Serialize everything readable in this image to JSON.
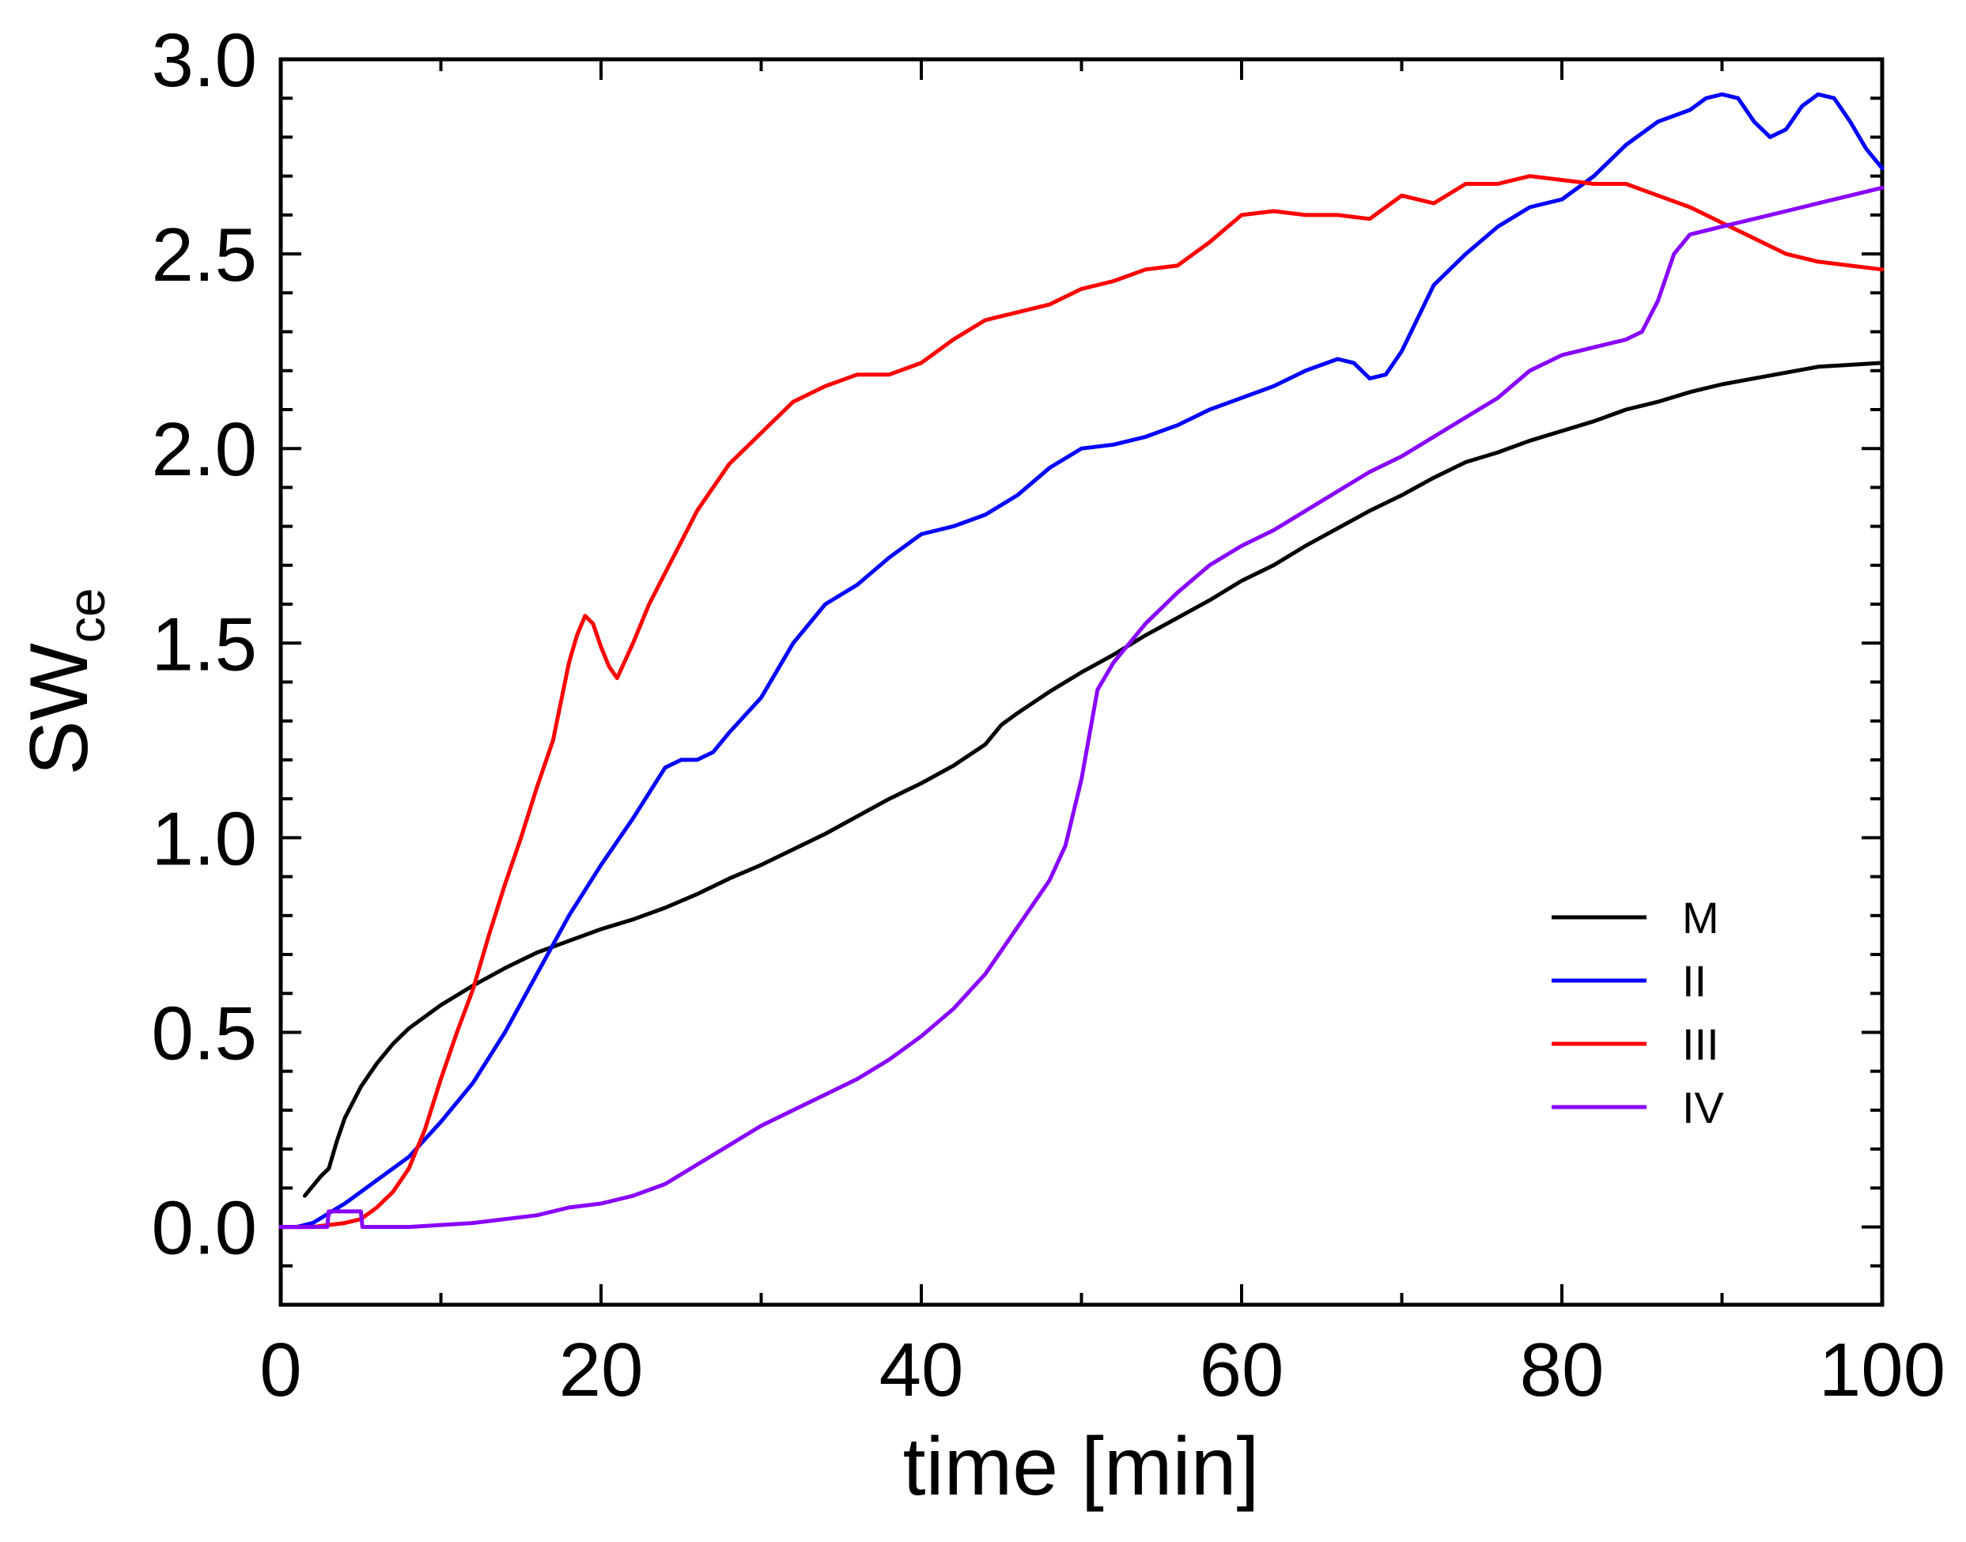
{
  "chart_data": {
    "type": "line",
    "title": "",
    "xlabel": "time [min]",
    "ylabel": "SW",
    "ylabel_subscript": "ce",
    "xlim": [
      0,
      100
    ],
    "ylim": [
      -0.2,
      3.0
    ],
    "xticks": [
      0,
      20,
      40,
      60,
      80,
      100
    ],
    "xtick_labels": [
      "0",
      "20",
      "40",
      "60",
      "80",
      "100"
    ],
    "yticks": [
      0.0,
      0.5,
      1.0,
      1.5,
      2.0,
      2.5,
      3.0
    ],
    "ytick_labels": [
      "0.0",
      "0.5",
      "1.0",
      "1.5",
      "2.0",
      "2.5",
      "3.0"
    ],
    "grid": false,
    "legend_position": "bottom-right",
    "series": [
      {
        "name": "M",
        "color": "#000000",
        "x": [
          1.5,
          2.5,
          3,
          3.5,
          4,
          5,
          6,
          7,
          8,
          10,
          12,
          14,
          16,
          18,
          20,
          22,
          24,
          26,
          28,
          30,
          32,
          34,
          36,
          38,
          40,
          42,
          44,
          45,
          46,
          48,
          50,
          52,
          54,
          56,
          58,
          60,
          62,
          64,
          66,
          68,
          70,
          72,
          74,
          76,
          78,
          80,
          82,
          84,
          86,
          88,
          90,
          92,
          94,
          96,
          98,
          100
        ],
        "y": [
          0.08,
          0.13,
          0.15,
          0.22,
          0.28,
          0.36,
          0.42,
          0.47,
          0.51,
          0.57,
          0.62,
          0.665,
          0.705,
          0.735,
          0.765,
          0.79,
          0.82,
          0.855,
          0.895,
          0.93,
          0.97,
          1.01,
          1.055,
          1.1,
          1.14,
          1.185,
          1.24,
          1.29,
          1.32,
          1.375,
          1.425,
          1.47,
          1.52,
          1.565,
          1.61,
          1.66,
          1.7,
          1.75,
          1.795,
          1.84,
          1.88,
          1.925,
          1.965,
          1.99,
          2.02,
          2.045,
          2.07,
          2.1,
          2.12,
          2.145,
          2.165,
          2.18,
          2.195,
          2.21,
          2.215,
          2.22
        ]
      },
      {
        "name": "II",
        "color": "#0000ff",
        "x": [
          0,
          1,
          2,
          4,
          6,
          8,
          10,
          12,
          14,
          16,
          18,
          20,
          22,
          24,
          25,
          26,
          27,
          28,
          30,
          32,
          34,
          36,
          38,
          40,
          42,
          44,
          46,
          48,
          50,
          52,
          54,
          56,
          58,
          60,
          62,
          64,
          66,
          67,
          68,
          69,
          70,
          72,
          74,
          76,
          78,
          80,
          82,
          84,
          86,
          88,
          89,
          90,
          91,
          92,
          93,
          94,
          95,
          96,
          97,
          98,
          99,
          100
        ],
        "y": [
          0.0,
          0.0,
          0.01,
          0.06,
          0.12,
          0.18,
          0.27,
          0.37,
          0.5,
          0.65,
          0.8,
          0.93,
          1.05,
          1.18,
          1.2,
          1.2,
          1.22,
          1.27,
          1.36,
          1.5,
          1.6,
          1.65,
          1.72,
          1.78,
          1.8,
          1.83,
          1.88,
          1.95,
          2.0,
          2.01,
          2.03,
          2.06,
          2.1,
          2.13,
          2.16,
          2.2,
          2.23,
          2.22,
          2.18,
          2.19,
          2.25,
          2.42,
          2.5,
          2.57,
          2.62,
          2.64,
          2.7,
          2.78,
          2.84,
          2.87,
          2.9,
          2.91,
          2.9,
          2.84,
          2.8,
          2.82,
          2.88,
          2.91,
          2.9,
          2.84,
          2.77,
          2.72
        ]
      },
      {
        "name": "III",
        "color": "#ff0000",
        "x": [
          0,
          2,
          4,
          5,
          6,
          7,
          8,
          9,
          10,
          11,
          12,
          13,
          14,
          15,
          16,
          17,
          17.5,
          18,
          18.5,
          19,
          19.5,
          20,
          20.5,
          21,
          22,
          23,
          24,
          25,
          26,
          28,
          30,
          32,
          34,
          36,
          38,
          40,
          42,
          44,
          46,
          48,
          50,
          52,
          54,
          56,
          58,
          60,
          62,
          64,
          66,
          68,
          70,
          72,
          74,
          76,
          78,
          80,
          82,
          84,
          86,
          88,
          90,
          92,
          94,
          96,
          98,
          100
        ],
        "y": [
          0.0,
          0.0,
          0.01,
          0.02,
          0.05,
          0.09,
          0.15,
          0.25,
          0.38,
          0.5,
          0.61,
          0.75,
          0.88,
          1.0,
          1.13,
          1.25,
          1.35,
          1.45,
          1.52,
          1.57,
          1.55,
          1.49,
          1.44,
          1.41,
          1.5,
          1.6,
          1.68,
          1.76,
          1.84,
          1.96,
          2.04,
          2.12,
          2.16,
          2.19,
          2.19,
          2.22,
          2.28,
          2.33,
          2.35,
          2.37,
          2.41,
          2.43,
          2.46,
          2.47,
          2.53,
          2.6,
          2.61,
          2.6,
          2.6,
          2.59,
          2.65,
          2.63,
          2.68,
          2.68,
          2.7,
          2.69,
          2.68,
          2.68,
          2.65,
          2.62,
          2.58,
          2.54,
          2.5,
          2.48,
          2.47,
          2.46
        ]
      },
      {
        "name": "IV",
        "color": "#8800ff",
        "x": [
          0,
          2.9,
          3,
          5,
          5.1,
          6,
          8,
          10,
          12,
          14,
          16,
          18,
          20,
          22,
          24,
          26,
          28,
          30,
          32,
          34,
          36,
          38,
          40,
          42,
          44,
          46,
          48,
          49,
          50,
          51,
          52,
          53,
          54,
          56,
          58,
          60,
          62,
          64,
          66,
          68,
          70,
          72,
          74,
          76,
          78,
          80,
          82,
          84,
          85,
          86,
          87,
          88,
          90,
          92,
          94,
          96,
          98,
          100
        ],
        "y": [
          0.0,
          0.0,
          0.04,
          0.04,
          0.0,
          0.0,
          0.0,
          0.005,
          0.01,
          0.02,
          0.03,
          0.05,
          0.06,
          0.08,
          0.11,
          0.16,
          0.21,
          0.26,
          0.3,
          0.34,
          0.38,
          0.43,
          0.49,
          0.56,
          0.65,
          0.77,
          0.89,
          0.98,
          1.15,
          1.38,
          1.45,
          1.5,
          1.55,
          1.63,
          1.7,
          1.75,
          1.79,
          1.84,
          1.89,
          1.94,
          1.98,
          2.03,
          2.08,
          2.13,
          2.2,
          2.24,
          2.26,
          2.28,
          2.3,
          2.38,
          2.5,
          2.55,
          2.57,
          2.59,
          2.61,
          2.63,
          2.65,
          2.67
        ]
      }
    ]
  }
}
